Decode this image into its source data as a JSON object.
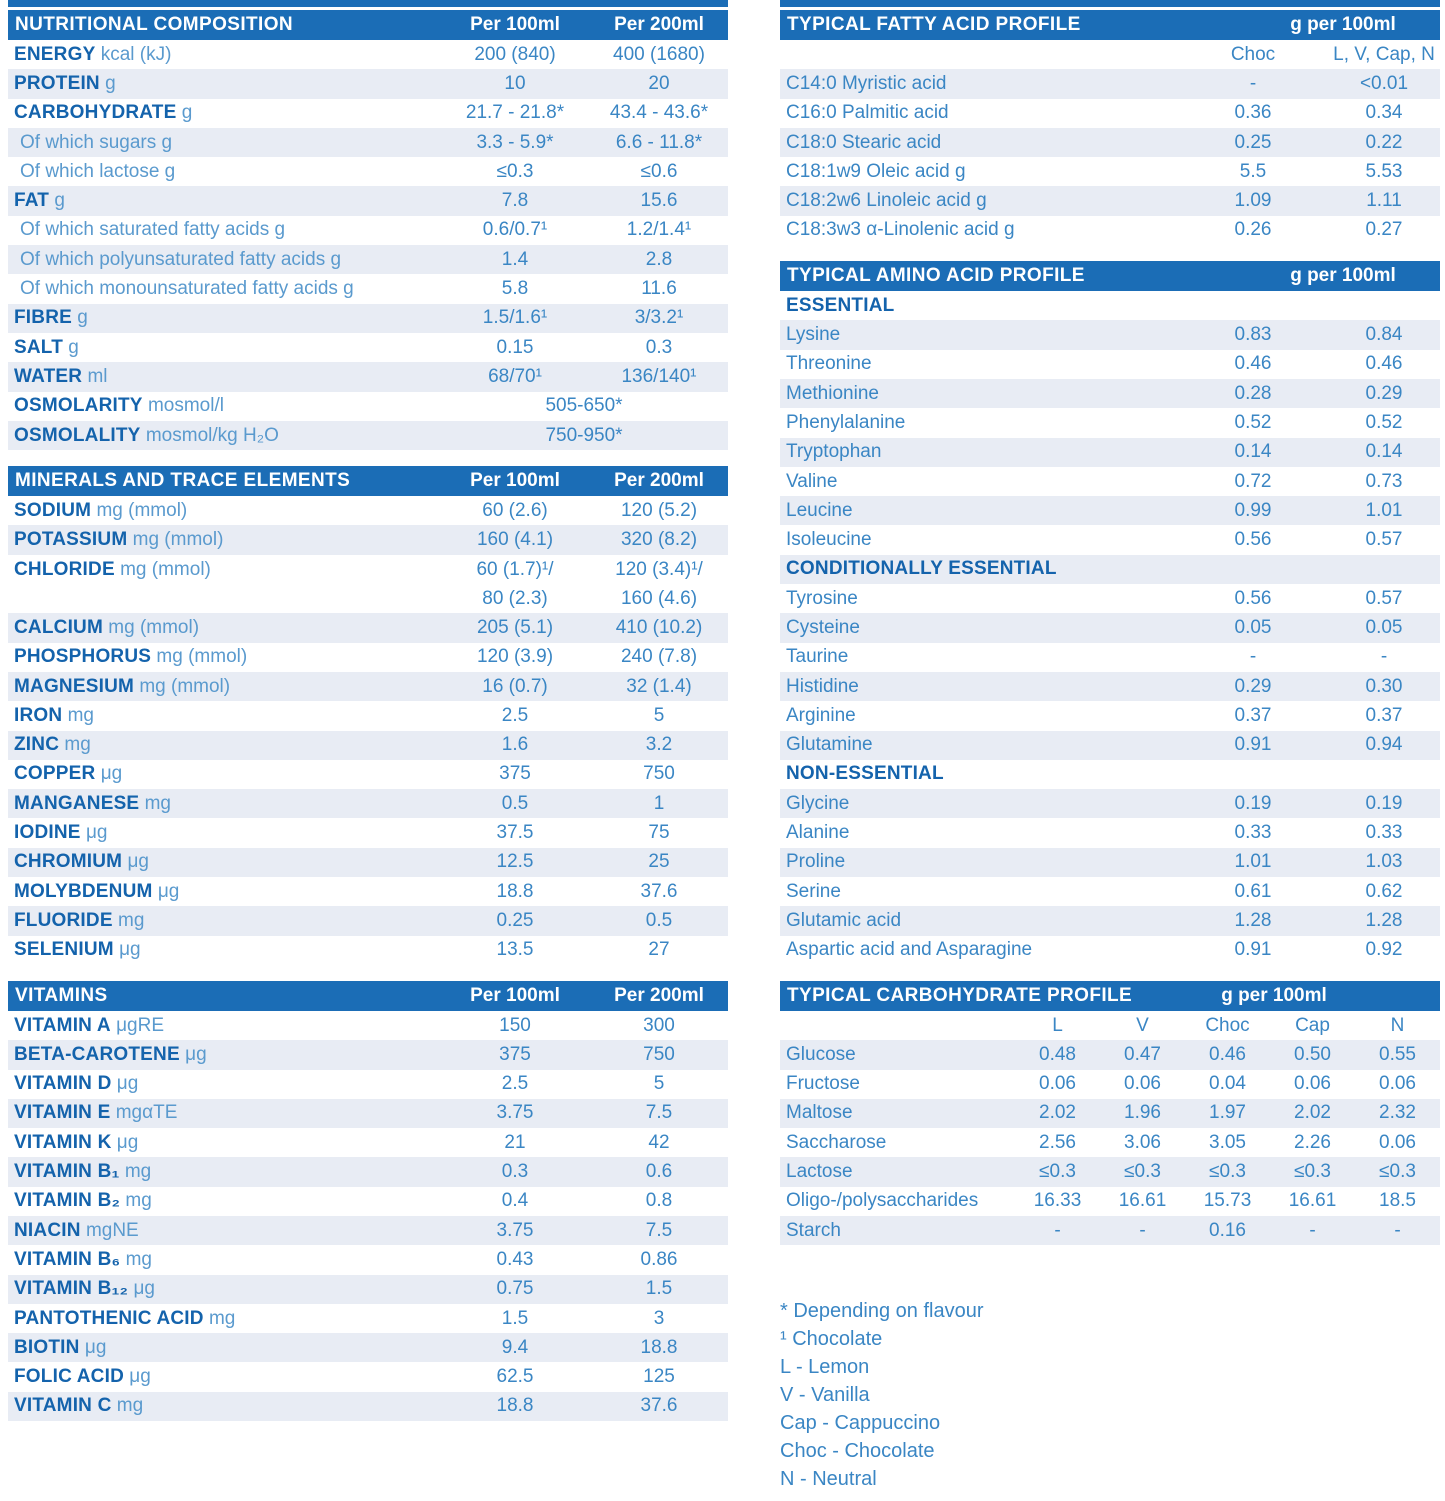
{
  "colors": {
    "header_bar_blue": "#1b6db6",
    "label_dark_blue": "#1463ac",
    "value_text_blue": "#3a86c4",
    "unit_text_blue": "#5a9ace",
    "row_stripe": "#e8ecf4"
  },
  "left": {
    "nutrition": {
      "title": "NUTRITIONAL COMPOSITION",
      "col1": "Per 100ml",
      "col2": "Per 200ml",
      "rows": [
        {
          "strong": "ENERGY",
          "rest": "kcal (kJ)",
          "v1": "200 (840)",
          "v2": "400 (1680)"
        },
        {
          "strong": "PROTEIN",
          "rest": "g",
          "v1": "10",
          "v2": "20"
        },
        {
          "strong": "CARBOHYDRATE",
          "rest": "g",
          "v1": "21.7 - 21.8*",
          "v2": "43.4 - 43.6*"
        },
        {
          "indent": true,
          "rest": "Of which sugars g",
          "v1": "3.3 - 5.9*",
          "v2": "6.6 - 11.8*"
        },
        {
          "indent": true,
          "rest": "Of which lactose g",
          "v1": "≤0.3",
          "v2": "≤0.6"
        },
        {
          "strong": "FAT",
          "rest": "g",
          "v1": "7.8",
          "v2": "15.6"
        },
        {
          "indent": true,
          "rest": "Of which saturated fatty acids g",
          "v1": "0.6/0.7¹",
          "v2": "1.2/1.4¹"
        },
        {
          "indent": true,
          "rest": "Of which polyunsaturated fatty acids g",
          "v1": "1.4",
          "v2": "2.8"
        },
        {
          "indent": true,
          "rest": "Of which monounsaturated fatty acids g",
          "v1": "5.8",
          "v2": "11.6"
        },
        {
          "strong": "FIBRE",
          "rest": "g",
          "v1": "1.5/1.6¹",
          "v2": "3/3.2¹"
        },
        {
          "strong": "SALT",
          "rest": "g",
          "v1": "0.15",
          "v2": "0.3"
        },
        {
          "strong": "WATER",
          "rest": "ml",
          "v1": "68/70¹",
          "v2": "136/140¹"
        },
        {
          "strong": "OSMOLARITY",
          "rest": "mosmol/l",
          "span": "505-650*"
        },
        {
          "strong": "OSMOLALITY",
          "rest": "mosmol/kg H₂O",
          "span": "750-950*"
        }
      ]
    },
    "minerals": {
      "title": "MINERALS AND TRACE ELEMENTS",
      "col1": "Per 100ml",
      "col2": "Per 200ml",
      "rows": [
        {
          "strong": "SODIUM",
          "rest": "mg (mmol)",
          "v1": "60 (2.6)",
          "v2": "120 (5.2)"
        },
        {
          "strong": "POTASSIUM",
          "rest": "mg (mmol)",
          "v1": "160 (4.1)",
          "v2": "320 (8.2)"
        },
        {
          "strong": "CHLORIDE",
          "rest": "mg (mmol)",
          "v1": "60 (1.7)¹/",
          "v1b": "80 (2.3)",
          "v2": "120 (3.4)¹/",
          "v2b": "160 (4.6)"
        },
        {
          "strong": "CALCIUM",
          "rest": "mg (mmol)",
          "v1": "205 (5.1)",
          "v2": "410 (10.2)"
        },
        {
          "strong": "PHOSPHORUS",
          "rest": "mg (mmol)",
          "v1": "120 (3.9)",
          "v2": "240 (7.8)"
        },
        {
          "strong": "MAGNESIUM",
          "rest": "mg (mmol)",
          "v1": "16 (0.7)",
          "v2": "32 (1.4)"
        },
        {
          "strong": "IRON",
          "rest": "mg",
          "v1": "2.5",
          "v2": "5"
        },
        {
          "strong": "ZINC",
          "rest": "mg",
          "v1": "1.6",
          "v2": "3.2"
        },
        {
          "strong": "COPPER",
          "rest": "μg",
          "v1": "375",
          "v2": "750"
        },
        {
          "strong": "MANGANESE",
          "rest": "mg",
          "v1": "0.5",
          "v2": "1"
        },
        {
          "strong": "IODINE",
          "rest": "μg",
          "v1": "37.5",
          "v2": "75"
        },
        {
          "strong": "CHROMIUM",
          "rest": "μg",
          "v1": "12.5",
          "v2": "25"
        },
        {
          "strong": "MOLYBDENUM",
          "rest": "μg",
          "v1": "18.8",
          "v2": "37.6"
        },
        {
          "strong": "FLUORIDE",
          "rest": "mg",
          "v1": "0.25",
          "v2": "0.5"
        },
        {
          "strong": "SELENIUM",
          "rest": "μg",
          "v1": "13.5",
          "v2": "27"
        }
      ]
    },
    "vitamins": {
      "title": "VITAMINS",
      "col1": "Per 100ml",
      "col2": "Per 200ml",
      "rows": [
        {
          "strong": "VITAMIN A",
          "rest": "μgRE",
          "v1": "150",
          "v2": "300"
        },
        {
          "strong": "BETA-CAROTENE",
          "rest": "μg",
          "v1": "375",
          "v2": "750"
        },
        {
          "strong": "VITAMIN D",
          "rest": "μg",
          "v1": "2.5",
          "v2": "5"
        },
        {
          "strong": "VITAMIN E",
          "rest": "mgαTE",
          "v1": "3.75",
          "v2": "7.5"
        },
        {
          "strong": "VITAMIN K",
          "rest": "μg",
          "v1": "21",
          "v2": "42"
        },
        {
          "strong": "VITAMIN B₁",
          "rest": "mg",
          "v1": "0.3",
          "v2": "0.6"
        },
        {
          "strong": "VITAMIN B₂",
          "rest": "mg",
          "v1": "0.4",
          "v2": "0.8"
        },
        {
          "strong": "NIACIN",
          "rest": "mgNE",
          "v1": "3.75",
          "v2": "7.5"
        },
        {
          "strong": "VITAMIN B₆",
          "rest": "mg",
          "v1": "0.43",
          "v2": "0.86"
        },
        {
          "strong": "VITAMIN B₁₂",
          "rest": "μg",
          "v1": "0.75",
          "v2": "1.5"
        },
        {
          "strong": "PANTOTHENIC ACID",
          "rest": "mg",
          "v1": "1.5",
          "v2": "3"
        },
        {
          "strong": "BIOTIN",
          "rest": "μg",
          "v1": "9.4",
          "v2": "18.8"
        },
        {
          "strong": "FOLIC ACID",
          "rest": "μg",
          "v1": "62.5",
          "v2": "125"
        },
        {
          "strong": "VITAMIN C",
          "rest": "mg",
          "v1": "18.8",
          "v2": "37.6"
        }
      ]
    }
  },
  "right": {
    "fatty": {
      "title": "TYPICAL FATTY ACID PROFILE",
      "unit_header": "g per 100ml",
      "rows": [
        {
          "colheads": [
            "Choc",
            "L, V, Cap, N"
          ]
        },
        {
          "label": "C14:0 Myristic acid",
          "v1": "-",
          "v2": "<0.01"
        },
        {
          "label": "C16:0 Palmitic acid",
          "v1": "0.36",
          "v2": "0.34"
        },
        {
          "label": "C18:0 Stearic acid",
          "v1": "0.25",
          "v2": "0.22"
        },
        {
          "label": "C18:1w9 Oleic acid g",
          "v1": "5.5",
          "v2": "5.53"
        },
        {
          "label": "C18:2w6 Linoleic acid g",
          "v1": "1.09",
          "v2": "1.11"
        },
        {
          "label": "C18:3w3 α-Linolenic acid g",
          "v1": "0.26",
          "v2": "0.27"
        }
      ]
    },
    "amino": {
      "title": "TYPICAL AMINO ACID PROFILE",
      "unit_header": "g per 100ml",
      "rows": [
        {
          "category": "ESSENTIAL"
        },
        {
          "label": "Lysine",
          "v1": "0.83",
          "v2": "0.84"
        },
        {
          "label": "Threonine",
          "v1": "0.46",
          "v2": "0.46"
        },
        {
          "label": "Methionine",
          "v1": "0.28",
          "v2": "0.29"
        },
        {
          "label": "Phenylalanine",
          "v1": "0.52",
          "v2": "0.52"
        },
        {
          "label": "Tryptophan",
          "v1": "0.14",
          "v2": "0.14"
        },
        {
          "label": "Valine",
          "v1": "0.72",
          "v2": "0.73"
        },
        {
          "label": "Leucine",
          "v1": "0.99",
          "v2": "1.01"
        },
        {
          "label": "Isoleucine",
          "v1": "0.56",
          "v2": "0.57"
        },
        {
          "category": "CONDITIONALLY ESSENTIAL"
        },
        {
          "label": "Tyrosine",
          "v1": "0.56",
          "v2": "0.57"
        },
        {
          "label": "Cysteine",
          "v1": "0.05",
          "v2": "0.05"
        },
        {
          "label": "Taurine",
          "v1": "-",
          "v2": "-"
        },
        {
          "label": "Histidine",
          "v1": "0.29",
          "v2": "0.30"
        },
        {
          "label": "Arginine",
          "v1": "0.37",
          "v2": "0.37"
        },
        {
          "label": "Glutamine",
          "v1": "0.91",
          "v2": "0.94"
        },
        {
          "category": "NON-ESSENTIAL"
        },
        {
          "label": "Glycine",
          "v1": "0.19",
          "v2": "0.19"
        },
        {
          "label": "Alanine",
          "v1": "0.33",
          "v2": "0.33"
        },
        {
          "label": "Proline",
          "v1": "1.01",
          "v2": "1.03"
        },
        {
          "label": "Serine",
          "v1": "0.61",
          "v2": "0.62"
        },
        {
          "label": "Glutamic acid",
          "v1": "1.28",
          "v2": "1.28"
        },
        {
          "label": "Aspartic acid and Asparagine",
          "v1": "0.91",
          "v2": "0.92"
        }
      ]
    },
    "carbs": {
      "title": "TYPICAL CARBOHYDRATE PROFILE",
      "unit_header": "g per 100ml",
      "rows": [
        {
          "colheads": [
            "L",
            "V",
            "Choc",
            "Cap",
            "N"
          ]
        },
        {
          "label": "Glucose",
          "values": [
            "0.48",
            "0.47",
            "0.46",
            "0.50",
            "0.55"
          ]
        },
        {
          "label": "Fructose",
          "values": [
            "0.06",
            "0.06",
            "0.04",
            "0.06",
            "0.06"
          ]
        },
        {
          "label": "Maltose",
          "values": [
            "2.02",
            "1.96",
            "1.97",
            "2.02",
            "2.32"
          ]
        },
        {
          "label": "Saccharose",
          "values": [
            "2.56",
            "3.06",
            "3.05",
            "2.26",
            "0.06"
          ]
        },
        {
          "label": "Lactose",
          "values": [
            "≤0.3",
            "≤0.3",
            "≤0.3",
            "≤0.3",
            "≤0.3"
          ]
        },
        {
          "label": "Oligo-/polysaccharides",
          "values": [
            "16.33",
            "16.61",
            "15.73",
            "16.61",
            "18.5"
          ]
        },
        {
          "label": "Starch",
          "values": [
            "-",
            "-",
            "0.16",
            "-",
            "-"
          ]
        }
      ]
    }
  },
  "footnotes": [
    "* Depending on flavour",
    "¹ Chocolate",
    "L - Lemon",
    "V - Vanilla",
    "Cap - Cappuccino",
    "Choc - Chocolate",
    "N - Neutral"
  ]
}
